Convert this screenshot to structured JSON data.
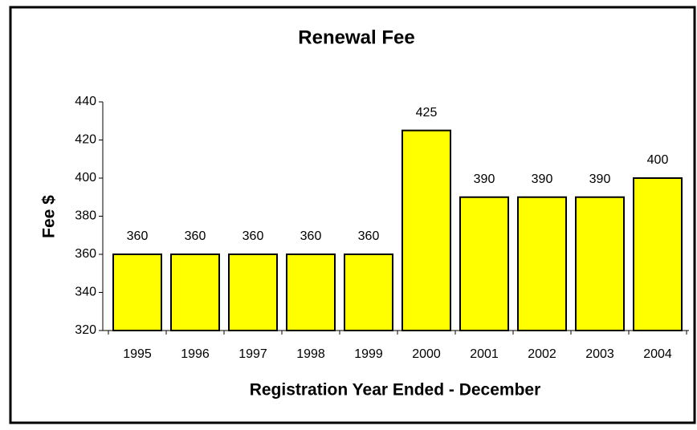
{
  "chart_data": {
    "type": "bar",
    "title": "Renewal Fee",
    "x_label": "Registration Year Ended - December",
    "y_label": "Fee $",
    "categories": [
      "1995",
      "1996",
      "1997",
      "1998",
      "1999",
      "2000",
      "2001",
      "2002",
      "2003",
      "2004"
    ],
    "values": [
      360,
      360,
      360,
      360,
      360,
      425,
      390,
      390,
      390,
      400
    ],
    "color": "#ffff00",
    "ylim": [
      320,
      440
    ],
    "yticks": [
      320,
      340,
      360,
      380,
      400,
      420,
      440
    ],
    "grid": false
  }
}
